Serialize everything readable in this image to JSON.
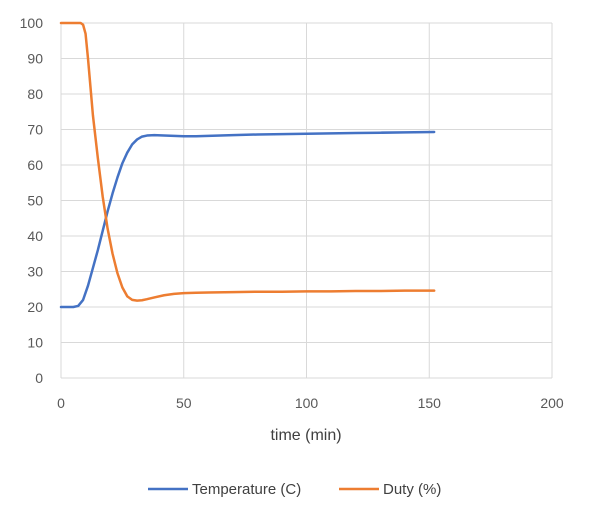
{
  "chart_data": {
    "type": "line",
    "title": "",
    "xlabel": "time (min)",
    "ylabel": "",
    "xlim": [
      0,
      200
    ],
    "ylim": [
      0,
      100
    ],
    "xticks": [
      0,
      50,
      100,
      150,
      200
    ],
    "yticks": [
      0,
      10,
      20,
      30,
      40,
      50,
      60,
      70,
      80,
      90,
      100
    ],
    "grid": true,
    "legend_position": "bottom",
    "series": [
      {
        "name": "Temperature (C)",
        "color": "#4472C4",
        "x": [
          0,
          5,
          7,
          9,
          11,
          13,
          15,
          17,
          19,
          21,
          23,
          25,
          27,
          29,
          31,
          33,
          35,
          38,
          42,
          46,
          50,
          55,
          60,
          70,
          80,
          90,
          100,
          110,
          120,
          130,
          140,
          152
        ],
        "y": [
          20,
          20,
          20.3,
          22,
          26,
          31,
          36,
          41.5,
          47,
          52,
          56.5,
          60.5,
          63.5,
          65.8,
          67.2,
          68,
          68.3,
          68.4,
          68.3,
          68.2,
          68.1,
          68.1,
          68.2,
          68.4,
          68.6,
          68.7,
          68.8,
          68.9,
          69,
          69.1,
          69.2,
          69.3
        ]
      },
      {
        "name": "Duty (%)",
        "color": "#ED7D31",
        "x": [
          0,
          5,
          8,
          9,
          10,
          11,
          12,
          13,
          15,
          17,
          19,
          21,
          23,
          25,
          27,
          29,
          31,
          33,
          35,
          38,
          42,
          46,
          50,
          55,
          60,
          70,
          80,
          90,
          100,
          110,
          120,
          130,
          140,
          152
        ],
        "y": [
          100,
          100,
          100,
          99.5,
          97,
          90,
          82,
          74,
          62,
          51,
          42,
          35,
          29.5,
          25.5,
          23,
          22,
          21.8,
          21.9,
          22.2,
          22.7,
          23.3,
          23.7,
          23.9,
          24,
          24.1,
          24.2,
          24.3,
          24.3,
          24.4,
          24.4,
          24.5,
          24.5,
          24.6,
          24.6
        ]
      }
    ]
  }
}
